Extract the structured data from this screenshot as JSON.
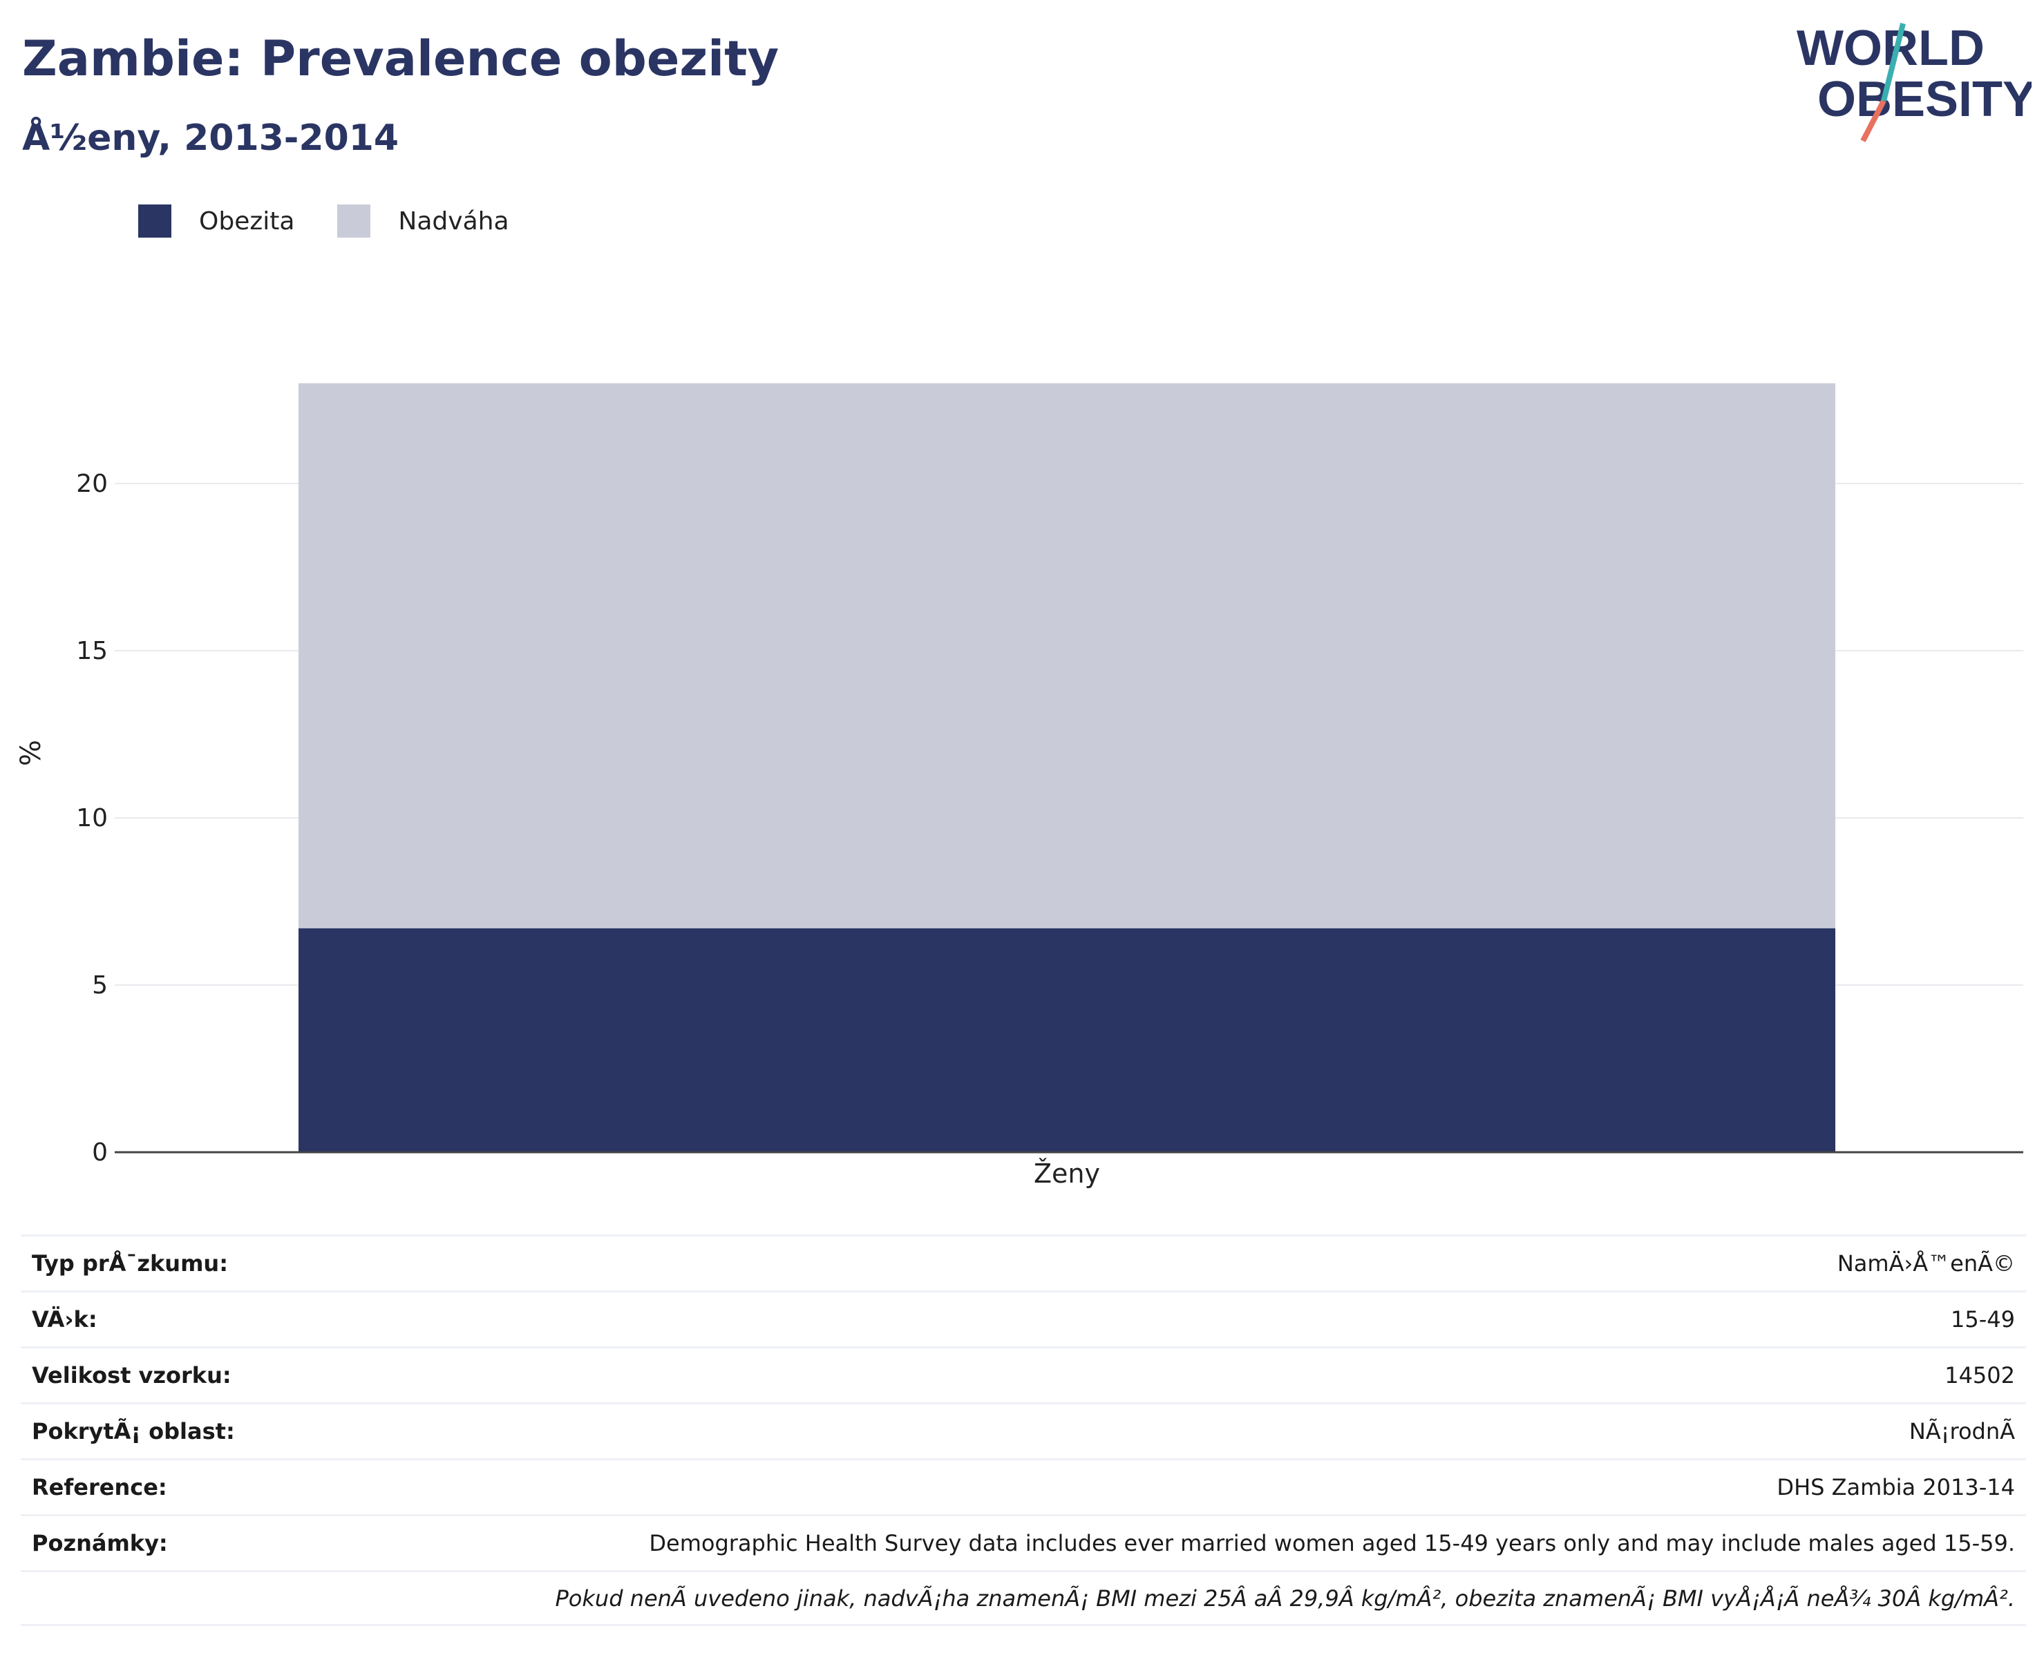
{
  "header": {
    "title": "Zambie: Prevalence obezity",
    "subtitle": "Å½eny, 2013-2014",
    "logo_text_line1": "WORLD",
    "logo_text_line2": "OBESITY"
  },
  "legend": {
    "items": [
      {
        "label": "Obezita",
        "color": "#2a3563"
      },
      {
        "label": "Nadváha",
        "color": "#c9ccd8"
      }
    ],
    "placement": "top-left"
  },
  "chart_data": {
    "type": "bar",
    "stacked": true,
    "categories": [
      "Ženy"
    ],
    "series": [
      {
        "name": "Obezita",
        "values": [
          6.7
        ],
        "color": "#2a3563"
      },
      {
        "name": "Nadváha",
        "values": [
          16.3
        ],
        "color": "#c9ccd8"
      }
    ],
    "title": "Zambie: Prevalence obezity",
    "subtitle": "Å½eny, 2013-2014",
    "xlabel": "",
    "ylabel": "%",
    "ylim": [
      0,
      23
    ],
    "yticks": [
      0,
      5,
      10,
      15,
      20
    ],
    "grid": true,
    "legend": "top-left"
  },
  "info": {
    "rows": [
      {
        "label": "Typ prÅ¯zkumu:",
        "value": "NamÄ›Å™enÃ©"
      },
      {
        "label": "VÄ›k:",
        "value": "15-49"
      },
      {
        "label": "Velikost vzorku:",
        "value": "14502"
      },
      {
        "label": "PokrytÃ¡ oblast:",
        "value": "NÃ¡rodnÃ"
      },
      {
        "label": "Reference:",
        "value": "DHS Zambia 2013-14"
      },
      {
        "label": "Poznámky:",
        "value": "Demographic Health Survey data includes ever married women aged 15-49 years only and may include males aged 15-59."
      }
    ],
    "footnote": "Pokud nenÃ uvedeno jinak, nadvÃ¡ha znamenÃ¡ BMI mezi 25Â aÂ 29,9Â kg/mÂ², obezita znamenÃ¡ BMI vyÅ¡Å¡Ã neÅ¾ 30Â kg/mÂ²."
  }
}
